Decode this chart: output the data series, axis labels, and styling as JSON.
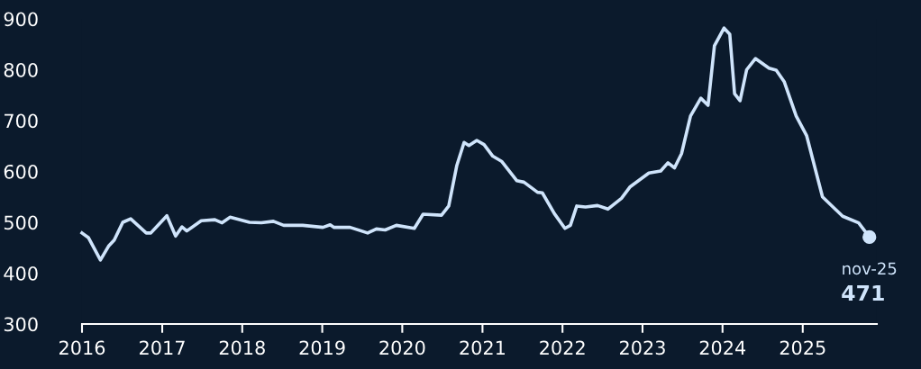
{
  "chart_data": {
    "type": "line",
    "x": [
      "2016-01-01",
      "2016-01-30",
      "2016-03-25",
      "2016-05-01",
      "2016-05-27",
      "2016-07-05",
      "2016-08-10",
      "2016-10-20",
      "2016-11-10",
      "2017-01-22",
      "2017-03-03",
      "2017-04-01",
      "2017-04-23",
      "2017-06-28",
      "2017-08-29",
      "2017-10-01",
      "2017-11-06",
      "2018-02-03",
      "2018-03-29",
      "2018-05-23",
      "2018-07-09",
      "2018-10-04",
      "2019-01-04",
      "2019-02-06",
      "2019-02-24",
      "2019-05-08",
      "2019-07-27",
      "2019-09-05",
      "2019-10-15",
      "2019-12-05",
      "2020-02-25",
      "2020-04-05",
      "2020-06-28",
      "2020-07-31",
      "2020-09-06",
      "2020-10-09",
      "2020-10-31",
      "2020-12-06",
      "2021-01-08",
      "2021-02-17",
      "2021-03-29",
      "2021-06-06",
      "2021-07-09",
      "2021-09-09",
      "2021-10-01",
      "2021-11-25",
      "2022-01-12",
      "2022-02-06",
      "2022-03-07",
      "2022-04-16",
      "2022-06-10",
      "2022-07-27",
      "2022-09-27",
      "2022-11-06",
      "2023-01-30",
      "2023-03-25",
      "2023-04-27",
      "2023-05-27",
      "2023-06-28",
      "2023-08-08",
      "2023-09-24",
      "2023-10-27",
      "2023-11-25",
      "2024-01-08",
      "2024-02-03",
      "2024-02-25",
      "2024-03-21",
      "2024-04-20",
      "2024-05-30",
      "2024-07-31",
      "2024-09-02",
      "2024-10-09",
      "2024-12-02",
      "2025-01-19",
      "2025-04-01",
      "2025-07-02",
      "2025-09-13",
      "2025-11-01"
    ],
    "series": [
      {
        "color": "#cfe4fb",
        "values": [
          479,
          470,
          426,
          453,
          465,
          500,
          507,
          479,
          479,
          513,
          473,
          491,
          483,
          503,
          505,
          499,
          510,
          500,
          499,
          502,
          494,
          494,
          490,
          495,
          490,
          490,
          479,
          487,
          485,
          494,
          488,
          516,
          514,
          532,
          612,
          657,
          651,
          661,
          653,
          630,
          620,
          582,
          579,
          559,
          558,
          517,
          488,
          494,
          532,
          530,
          533,
          526,
          547,
          570,
          597,
          601,
          617,
          607,
          635,
          709,
          744,
          730,
          847,
          882,
          870,
          753,
          739,
          800,
          822,
          803,
          799,
          776,
          709,
          670,
          550,
          512,
          499,
          471
        ]
      }
    ],
    "xlim": [
      "2016-01-01",
      "2025-12-05"
    ],
    "xticks": [
      "2016",
      "2017",
      "2018",
      "2019",
      "2020",
      "2021",
      "2022",
      "2023",
      "2024",
      "2025"
    ],
    "ylim": [
      300,
      900
    ],
    "yticks": [
      300,
      400,
      500,
      600,
      700,
      800,
      900
    ],
    "grid": false,
    "legend": false,
    "marker": "none",
    "line_style": "solid",
    "annotations": [
      {
        "text": "nov-25",
        "x": "2025-11-01",
        "y": 471
      },
      {
        "text": "471",
        "x": "2025-11-01",
        "y": 471
      }
    ]
  }
}
